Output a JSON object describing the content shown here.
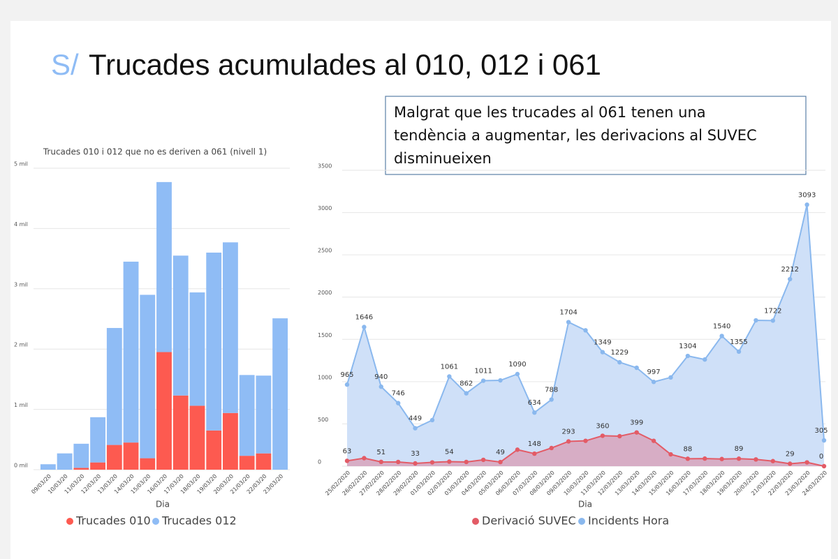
{
  "slide": {
    "title_prefix": "S/",
    "title": "Trucades acumulades al 010, 012 i 061",
    "note": [
      "Malgrat que les trucades al 061 tenen una",
      "tendència a augmentar, les derivacions al SUVEC",
      "disminueixen"
    ]
  },
  "chart_data": [
    {
      "type": "stacked_bar",
      "title": "Trucades 010 i 012 que no es deriven a 061 (nivell 1)",
      "x_label": "Dia",
      "categories": [
        "09/03/20",
        "10/03/20",
        "11/03/20",
        "12/03/20",
        "13/03/20",
        "14/03/20",
        "15/03/20",
        "16/03/20",
        "17/03/20",
        "18/03/20",
        "19/03/20",
        "20/03/20",
        "21/03/20",
        "22/03/20",
        "23/03/20"
      ],
      "series": [
        {
          "name": "Trucades 010",
          "color": "#fd5a50",
          "values": [
            0,
            0,
            30,
            120,
            410,
            450,
            190,
            1950,
            1230,
            1060,
            650,
            940,
            230,
            270,
            0
          ]
        },
        {
          "name": "Trucades 012",
          "color": "#8fbcf5",
          "values": [
            90,
            270,
            400,
            750,
            1940,
            3000,
            2710,
            2820,
            2320,
            1880,
            2950,
            2830,
            1340,
            1290,
            2510
          ]
        }
      ],
      "ylim": [
        0,
        5000
      ],
      "yticks": [
        {
          "value": 0,
          "label": "0 mil"
        },
        {
          "value": 1000,
          "label": "1 mil"
        },
        {
          "value": 2000,
          "label": "2 mil"
        },
        {
          "value": 3000,
          "label": "3 mil"
        },
        {
          "value": 4000,
          "label": "4 mil"
        },
        {
          "value": 5000,
          "label": "5 mil"
        }
      ],
      "grid": true
    },
    {
      "type": "area_line",
      "x_label": "Dia",
      "categories": [
        "25/02/2020",
        "26/02/2020",
        "27/02/2020",
        "28/02/2020",
        "29/02/2020",
        "01/03/2020",
        "02/03/2020",
        "03/03/2020",
        "04/03/2020",
        "05/03/2020",
        "06/03/2020",
        "07/03/2020",
        "08/03/2020",
        "09/03/2020",
        "10/03/2020",
        "11/03/2020",
        "12/03/2020",
        "13/03/2020",
        "14/03/2020",
        "15/03/2020",
        "16/03/2020",
        "17/03/2020",
        "18/03/2020",
        "19/03/2020",
        "20/03/2020",
        "21/03/2020",
        "22/03/2020",
        "23/03/2020",
        "24/03/2020"
      ],
      "series": [
        {
          "name": "Incidents Hora",
          "color": "#8ab8ee",
          "area_color": "#cfe0f8",
          "values": [
            965,
            1646,
            940,
            746,
            449,
            545,
            1061,
            862,
            1011,
            1015,
            1090,
            634,
            788,
            1704,
            1607,
            1349,
            1229,
            1164,
            997,
            1050,
            1304,
            1262,
            1540,
            1355,
            1725,
            1722,
            2212,
            3093,
            305
          ],
          "value_labels": [
            "965",
            "1646",
            "940",
            "746",
            "449",
            null,
            "1061",
            "862",
            "1011",
            null,
            "1090",
            "634",
            "788",
            "1704",
            null,
            "1349",
            "1229",
            null,
            "997",
            null,
            "1304",
            null,
            "1540",
            "1355",
            null,
            "1722",
            "2212",
            "3093",
            "305"
          ]
        },
        {
          "name": "Derivació SUVEC",
          "color": "#e35b66",
          "area_color": "#d8a3bc",
          "values": [
            63,
            95,
            51,
            50,
            33,
            45,
            54,
            50,
            75,
            49,
            195,
            148,
            215,
            293,
            300,
            360,
            355,
            399,
            300,
            140,
            88,
            90,
            85,
            89,
            80,
            60,
            29,
            45,
            0
          ],
          "value_labels": [
            "63",
            null,
            "51",
            null,
            "33",
            null,
            "54",
            null,
            null,
            "49",
            null,
            "148",
            null,
            "293",
            null,
            "360",
            null,
            "399",
            null,
            null,
            "88",
            null,
            null,
            "89",
            null,
            null,
            "29",
            null,
            "0"
          ]
        }
      ],
      "legend_order": [
        "Derivació SUVEC",
        "Incidents Hora"
      ],
      "ylim": [
        0,
        3500
      ],
      "yticks": [
        0,
        500,
        1000,
        1500,
        2000,
        2500,
        3000,
        3500
      ],
      "grid": true
    }
  ]
}
